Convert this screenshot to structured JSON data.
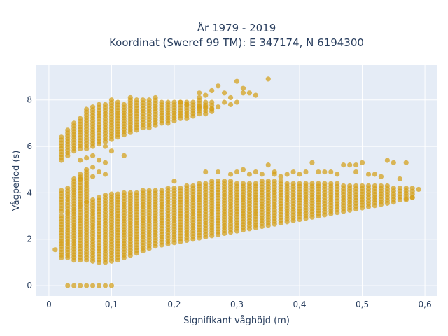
{
  "chart_data": {
    "type": "scatter",
    "title": "År 1979 - 2019",
    "subtitle": "Koordinat (Sweref 99 TM): E 347174, N 6194300",
    "xlabel": "Signifikant våghöjd (m)",
    "ylabel": "Vågperiod (s)",
    "xlim": [
      -0.02,
      0.62
    ],
    "ylim": [
      -0.45,
      9.5
    ],
    "xticks": [
      0,
      0.1,
      0.2,
      0.3,
      0.4,
      0.5,
      0.6
    ],
    "xtick_labels": [
      "0",
      "0,1",
      "0,2",
      "0,3",
      "0,4",
      "0,5",
      "0,6"
    ],
    "yticks": [
      0,
      2,
      4,
      6,
      8
    ],
    "ytick_labels": [
      "0",
      "2",
      "4",
      "6",
      "8"
    ],
    "grid": true,
    "background_color": "#e5ecf6",
    "marker_color": "#d4a017",
    "x_step": 0.01,
    "column_ranges": [
      {
        "x": 0.01,
        "y_ranges": [
          [
            1.55,
            1.6
          ]
        ]
      },
      {
        "x": 0.02,
        "y_ranges": [
          [
            1.2,
            3.0
          ],
          [
            3.2,
            4.1
          ],
          [
            5.4,
            6.4
          ]
        ]
      },
      {
        "x": 0.03,
        "y_ranges": [
          [
            0.0,
            0.0
          ],
          [
            1.2,
            3.1
          ],
          [
            3.2,
            4.2
          ],
          [
            5.6,
            6.7
          ]
        ]
      },
      {
        "x": 0.04,
        "y_ranges": [
          [
            0.0,
            0.0
          ],
          [
            1.1,
            3.2
          ],
          [
            3.3,
            4.6
          ],
          [
            5.8,
            7.0
          ]
        ]
      },
      {
        "x": 0.05,
        "y_ranges": [
          [
            0.0,
            0.0
          ],
          [
            1.1,
            3.4
          ],
          [
            3.5,
            4.8
          ],
          [
            5.9,
            7.2
          ]
        ]
      },
      {
        "x": 0.06,
        "y_ranges": [
          [
            0.0,
            0.0
          ],
          [
            1.1,
            3.6
          ],
          [
            3.6,
            5.0
          ],
          [
            5.9,
            7.6
          ]
        ]
      },
      {
        "x": 0.07,
        "y_ranges": [
          [
            0.0,
            0.0
          ],
          [
            1.05,
            3.7
          ],
          [
            6.0,
            7.7
          ]
        ]
      },
      {
        "x": 0.08,
        "y_ranges": [
          [
            0.0,
            0.0
          ],
          [
            1.0,
            3.8
          ],
          [
            6.1,
            7.8
          ]
        ]
      },
      {
        "x": 0.09,
        "y_ranges": [
          [
            0.0,
            0.0
          ],
          [
            1.0,
            3.9
          ],
          [
            6.2,
            7.8
          ]
        ]
      },
      {
        "x": 0.1,
        "y_ranges": [
          [
            0.0,
            0.0
          ],
          [
            1.05,
            3.95
          ],
          [
            6.3,
            8.0
          ]
        ]
      },
      {
        "x": 0.11,
        "y_ranges": [
          [
            1.1,
            3.95
          ],
          [
            6.4,
            7.9
          ]
        ]
      },
      {
        "x": 0.12,
        "y_ranges": [
          [
            1.2,
            4.0
          ],
          [
            6.5,
            7.8
          ]
        ]
      },
      {
        "x": 0.13,
        "y_ranges": [
          [
            1.3,
            4.0
          ],
          [
            6.6,
            8.1
          ]
        ]
      },
      {
        "x": 0.14,
        "y_ranges": [
          [
            1.4,
            4.0
          ],
          [
            6.7,
            8.0
          ]
        ]
      },
      {
        "x": 0.15,
        "y_ranges": [
          [
            1.5,
            4.1
          ],
          [
            6.8,
            8.0
          ]
        ]
      },
      {
        "x": 0.16,
        "y_ranges": [
          [
            1.6,
            4.1
          ],
          [
            6.8,
            8.0
          ]
        ]
      },
      {
        "x": 0.17,
        "y_ranges": [
          [
            1.7,
            4.1
          ],
          [
            6.9,
            8.1
          ]
        ]
      },
      {
        "x": 0.18,
        "y_ranges": [
          [
            1.75,
            4.1
          ],
          [
            7.0,
            7.9
          ]
        ]
      },
      {
        "x": 0.19,
        "y_ranges": [
          [
            1.8,
            4.2
          ],
          [
            7.0,
            7.9
          ]
        ]
      },
      {
        "x": 0.2,
        "y_ranges": [
          [
            1.85,
            4.2
          ],
          [
            7.1,
            7.9
          ]
        ]
      },
      {
        "x": 0.21,
        "y_ranges": [
          [
            1.9,
            4.2
          ],
          [
            7.2,
            7.9
          ]
        ]
      },
      {
        "x": 0.22,
        "y_ranges": [
          [
            1.95,
            4.3
          ],
          [
            7.2,
            7.9
          ]
        ]
      },
      {
        "x": 0.23,
        "y_ranges": [
          [
            2.0,
            4.3
          ],
          [
            7.3,
            7.9
          ]
        ]
      },
      {
        "x": 0.24,
        "y_ranges": [
          [
            2.05,
            4.4
          ],
          [
            7.4,
            8.1
          ]
        ]
      },
      {
        "x": 0.25,
        "y_ranges": [
          [
            2.1,
            4.4
          ],
          [
            7.4,
            7.9
          ]
        ]
      },
      {
        "x": 0.26,
        "y_ranges": [
          [
            2.15,
            4.5
          ],
          [
            7.5,
            7.9
          ]
        ]
      },
      {
        "x": 0.27,
        "y_ranges": [
          [
            2.2,
            4.5
          ]
        ]
      },
      {
        "x": 0.28,
        "y_ranges": [
          [
            2.25,
            4.5
          ]
        ]
      },
      {
        "x": 0.29,
        "y_ranges": [
          [
            2.3,
            4.5
          ]
        ]
      },
      {
        "x": 0.3,
        "y_ranges": [
          [
            2.35,
            4.4
          ]
        ]
      },
      {
        "x": 0.31,
        "y_ranges": [
          [
            2.4,
            4.4
          ]
        ]
      },
      {
        "x": 0.32,
        "y_ranges": [
          [
            2.45,
            4.4
          ]
        ]
      },
      {
        "x": 0.33,
        "y_ranges": [
          [
            2.5,
            4.4
          ]
        ]
      },
      {
        "x": 0.34,
        "y_ranges": [
          [
            2.55,
            4.5
          ]
        ]
      },
      {
        "x": 0.35,
        "y_ranges": [
          [
            2.6,
            4.5
          ]
        ]
      },
      {
        "x": 0.36,
        "y_ranges": [
          [
            2.65,
            4.5
          ]
        ]
      },
      {
        "x": 0.37,
        "y_ranges": [
          [
            2.7,
            4.5
          ]
        ]
      },
      {
        "x": 0.38,
        "y_ranges": [
          [
            2.75,
            4.4
          ]
        ]
      },
      {
        "x": 0.39,
        "y_ranges": [
          [
            2.8,
            4.4
          ]
        ]
      },
      {
        "x": 0.4,
        "y_ranges": [
          [
            2.85,
            4.4
          ]
        ]
      },
      {
        "x": 0.41,
        "y_ranges": [
          [
            2.9,
            4.4
          ]
        ]
      },
      {
        "x": 0.42,
        "y_ranges": [
          [
            2.95,
            4.4
          ]
        ]
      },
      {
        "x": 0.43,
        "y_ranges": [
          [
            3.0,
            4.4
          ]
        ]
      },
      {
        "x": 0.44,
        "y_ranges": [
          [
            3.05,
            4.4
          ]
        ]
      },
      {
        "x": 0.45,
        "y_ranges": [
          [
            3.1,
            4.4
          ]
        ]
      },
      {
        "x": 0.46,
        "y_ranges": [
          [
            3.15,
            4.4
          ]
        ]
      },
      {
        "x": 0.47,
        "y_ranges": [
          [
            3.2,
            4.3
          ]
        ]
      },
      {
        "x": 0.48,
        "y_ranges": [
          [
            3.25,
            4.3
          ]
        ]
      },
      {
        "x": 0.49,
        "y_ranges": [
          [
            3.3,
            4.3
          ]
        ]
      },
      {
        "x": 0.5,
        "y_ranges": [
          [
            3.35,
            4.3
          ]
        ]
      },
      {
        "x": 0.51,
        "y_ranges": [
          [
            3.4,
            4.3
          ]
        ]
      },
      {
        "x": 0.52,
        "y_ranges": [
          [
            3.45,
            4.3
          ]
        ]
      },
      {
        "x": 0.53,
        "y_ranges": [
          [
            3.5,
            4.3
          ]
        ]
      },
      {
        "x": 0.54,
        "y_ranges": [
          [
            3.55,
            4.3
          ]
        ]
      },
      {
        "x": 0.55,
        "y_ranges": [
          [
            3.6,
            4.2
          ]
        ]
      },
      {
        "x": 0.56,
        "y_ranges": [
          [
            3.7,
            4.2
          ]
        ]
      },
      {
        "x": 0.57,
        "y_ranges": [
          [
            3.75,
            4.2
          ]
        ]
      },
      {
        "x": 0.58,
        "y_ranges": [
          [
            3.8,
            4.2
          ]
        ]
      },
      {
        "x": 0.59,
        "y_ranges": [
          [
            4.15,
            4.2
          ]
        ]
      }
    ],
    "scattered_points": [
      [
        0.05,
        5.4
      ],
      [
        0.06,
        5.5
      ],
      [
        0.07,
        5.6
      ],
      [
        0.08,
        5.4
      ],
      [
        0.09,
        5.3
      ],
      [
        0.07,
        5.1
      ],
      [
        0.08,
        4.9
      ],
      [
        0.09,
        4.8
      ],
      [
        0.07,
        4.7
      ],
      [
        0.05,
        4.6
      ],
      [
        0.2,
        4.5
      ],
      [
        0.25,
        4.9
      ],
      [
        0.27,
        4.9
      ],
      [
        0.29,
        4.8
      ],
      [
        0.3,
        4.9
      ],
      [
        0.31,
        5.0
      ],
      [
        0.32,
        4.8
      ],
      [
        0.33,
        4.9
      ],
      [
        0.34,
        4.8
      ],
      [
        0.35,
        5.2
      ],
      [
        0.36,
        4.9
      ],
      [
        0.37,
        4.7
      ],
      [
        0.38,
        4.8
      ],
      [
        0.39,
        4.9
      ],
      [
        0.4,
        4.8
      ],
      [
        0.41,
        4.9
      ],
      [
        0.42,
        5.3
      ],
      [
        0.43,
        4.9
      ],
      [
        0.44,
        4.9
      ],
      [
        0.45,
        4.9
      ],
      [
        0.46,
        4.8
      ],
      [
        0.47,
        5.2
      ],
      [
        0.48,
        5.2
      ],
      [
        0.49,
        4.9
      ],
      [
        0.5,
        5.3
      ],
      [
        0.51,
        4.8
      ],
      [
        0.52,
        4.8
      ],
      [
        0.53,
        4.7
      ],
      [
        0.54,
        5.4
      ],
      [
        0.55,
        5.3
      ],
      [
        0.56,
        4.6
      ],
      [
        0.57,
        5.3
      ],
      [
        0.57,
        3.7
      ],
      [
        0.58,
        3.8
      ],
      [
        0.49,
        5.2
      ],
      [
        0.36,
        4.8
      ],
      [
        0.24,
        8.3
      ],
      [
        0.25,
        8.2
      ],
      [
        0.26,
        8.4
      ],
      [
        0.27,
        8.6
      ],
      [
        0.28,
        8.3
      ],
      [
        0.29,
        8.1
      ],
      [
        0.3,
        8.8
      ],
      [
        0.31,
        8.5
      ],
      [
        0.32,
        8.3
      ],
      [
        0.35,
        8.9
      ],
      [
        0.33,
        8.2
      ],
      [
        0.31,
        8.3
      ],
      [
        0.26,
        7.6
      ],
      [
        0.27,
        7.7
      ],
      [
        0.29,
        7.8
      ],
      [
        0.3,
        7.9
      ],
      [
        0.28,
        7.9
      ],
      [
        0.24,
        7.7
      ],
      [
        0.25,
        7.7
      ],
      [
        0.22,
        7.8
      ],
      [
        0.21,
        7.9
      ],
      [
        0.1,
        5.8
      ],
      [
        0.12,
        5.6
      ],
      [
        0.09,
        6.0
      ]
    ]
  }
}
